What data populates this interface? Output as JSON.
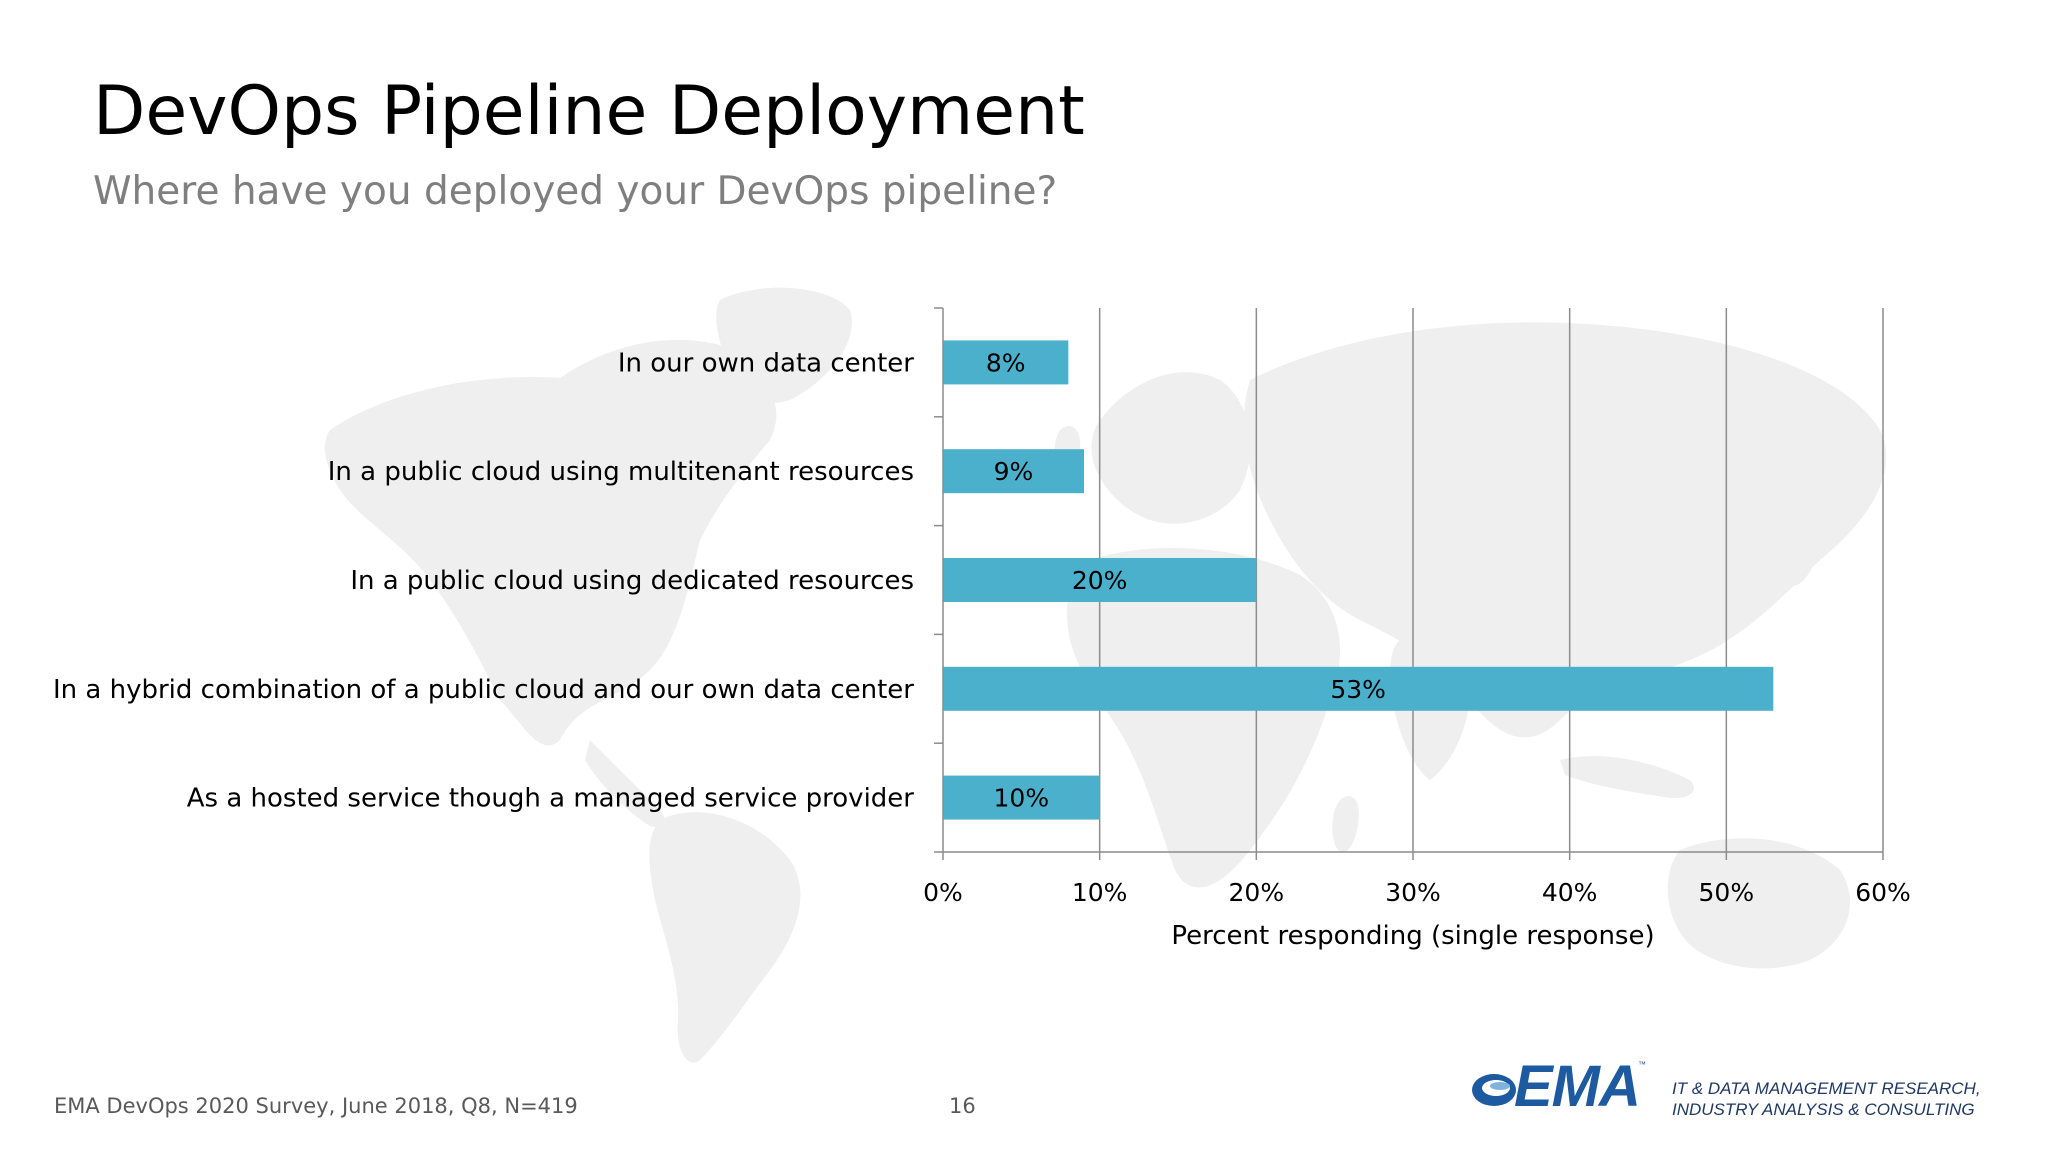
{
  "slide": {
    "title": "DevOps Pipeline Deployment",
    "subtitle": "Where have you deployed your DevOps pipeline?",
    "source": "EMA DevOps 2020 Survey, June 2018, Q8, N=419",
    "page_number": "16"
  },
  "logo": {
    "text": "EMA",
    "tm": "™",
    "tagline_line1": "IT & DATA MANAGEMENT RESEARCH,",
    "tagline_line2": "INDUSTRY ANALYSIS & CONSULTING"
  },
  "colors": {
    "bar": "#4bb0cc",
    "grid": "#8c8c8c",
    "map": "#efefef",
    "logo_blue": "#1e5aa0"
  },
  "background_image": "world-map",
  "chart_data": {
    "type": "bar",
    "orientation": "horizontal",
    "categories": [
      "In our own data center",
      "In a public cloud using multitenant resources",
      "In a public cloud using dedicated resources",
      "In a hybrid combination of a public cloud and our own data center",
      "As a hosted service though a managed service provider"
    ],
    "values": [
      8,
      9,
      20,
      53,
      10
    ],
    "value_labels": [
      "8%",
      "9%",
      "20%",
      "53%",
      "10%"
    ],
    "xlabel": "Percent responding (single response)",
    "xlim": [
      0,
      60
    ],
    "xticks": [
      0,
      10,
      20,
      30,
      40,
      50,
      60
    ],
    "xtick_labels": [
      "0%",
      "10%",
      "20%",
      "30%",
      "40%",
      "50%",
      "60%"
    ],
    "grid": "vertical",
    "legend": "none"
  }
}
